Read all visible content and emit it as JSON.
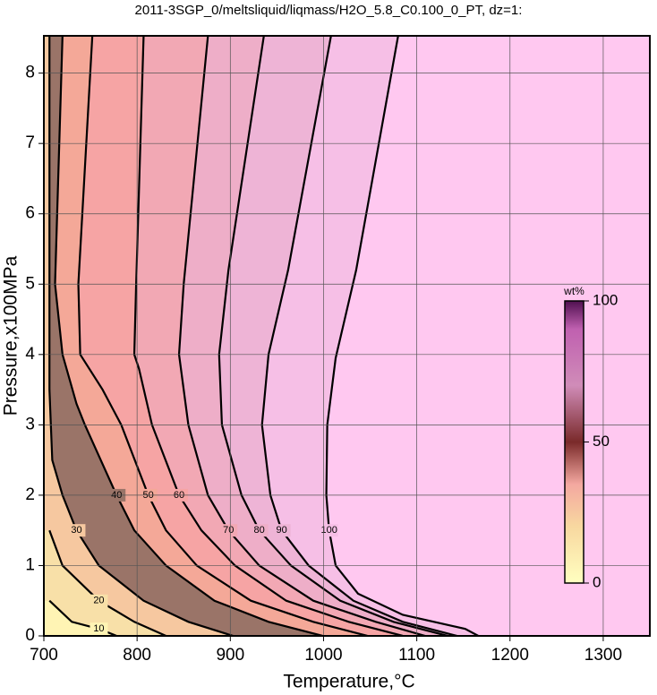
{
  "chart_data": {
    "type": "contour",
    "title": "2011-3SGP_0/meltsliquid/liqmass/H2O_5.8_C0.100_0_PT, dz=1:",
    "x_label": "Temperature,°C",
    "y_label": "Pressure,x100MPa",
    "xlim": [
      700,
      1350
    ],
    "xticks": [
      700,
      800,
      900,
      1000,
      1100,
      1200,
      1300
    ],
    "ylim": [
      0,
      8.53
    ],
    "yticks": [
      0,
      1,
      2,
      3,
      4,
      5,
      6,
      7,
      8
    ],
    "grid": true,
    "background_color": "#ffc8f0",
    "contours": [
      {
        "level": 100,
        "color": "#f6bfe6",
        "x": [
          1080,
          1035,
          1013,
          1004,
          1003,
          1006,
          1013,
          1037,
          1085,
          1152,
          1166
        ],
        "y": [
          8.53,
          5.2,
          3.95,
          3,
          2,
          1.5,
          1,
          0.6,
          0.3,
          0.1,
          0
        ]
      },
      {
        "level": 90,
        "color": "#eeb4d6",
        "x": [
          1008,
          962,
          941,
          934,
          943,
          955,
          984,
          1032,
          1085,
          1143
        ],
        "y": [
          8.53,
          5.2,
          4,
          3,
          2,
          1.5,
          1,
          0.5,
          0.2,
          0
        ]
      },
      {
        "level": 80,
        "color": "#eeaec8",
        "x": [
          936,
          898,
          888,
          891,
          912,
          931,
          965,
          1018,
          1075,
          1133
        ],
        "y": [
          8.53,
          5.2,
          4,
          3,
          2,
          1.5,
          1,
          0.5,
          0.2,
          0
        ]
      },
      {
        "level": 70,
        "color": "#f2a8b4",
        "x": [
          876,
          850,
          845,
          855,
          876,
          898,
          931,
          989,
          1056,
          1109
        ],
        "y": [
          8.53,
          5,
          4,
          3,
          2,
          1.5,
          1,
          0.5,
          0.2,
          0
        ]
      },
      {
        "level": 60,
        "color": "#f6a4a4",
        "x": [
          807,
          799,
          797,
          802,
          816,
          845,
          869,
          905,
          960,
          1027,
          1085
        ],
        "y": [
          8.53,
          5,
          4,
          3.8,
          3,
          2,
          1.5,
          1,
          0.5,
          0.2,
          0
        ]
      },
      {
        "level": 50,
        "color": "#f4a898",
        "x": [
          752,
          737,
          739,
          763,
          783,
          812,
          831,
          864,
          922,
          989,
          1047
        ],
        "y": [
          8.53,
          5,
          4,
          3.5,
          3,
          2,
          1.5,
          1,
          0.5,
          0.2,
          0
        ]
      },
      {
        "level": 40,
        "color": "#9a7468",
        "x": [
          720,
          712,
          720,
          735,
          744,
          778,
          797,
          831,
          883,
          941,
          999
        ],
        "y": [
          8.53,
          5,
          4,
          3.3,
          3,
          2,
          1.5,
          1,
          0.5,
          0.2,
          0
        ]
      },
      {
        "level": 30,
        "color": "#f6c8a0",
        "x": [
          706,
          706,
          706,
          709,
          720,
          735,
          759,
          807,
          855,
          903
        ],
        "y": [
          8.53,
          6,
          3.5,
          2.5,
          2,
          1.5,
          1,
          0.5,
          0.2,
          0
        ]
      },
      {
        "level": 20,
        "color": "#f8e0a8",
        "x": [
          706,
          720,
          759,
          797,
          831
        ],
        "y": [
          1.5,
          1,
          0.5,
          0.2,
          0
        ]
      },
      {
        "level": 10,
        "color": "#fff4b4",
        "x": [
          706,
          730,
          759,
          778
        ],
        "y": [
          0.5,
          0.2,
          0.1,
          0
        ]
      }
    ],
    "colorbar": {
      "label": "wt%",
      "lim": [
        0,
        100
      ],
      "ticks": [
        0,
        50,
        100
      ]
    }
  }
}
